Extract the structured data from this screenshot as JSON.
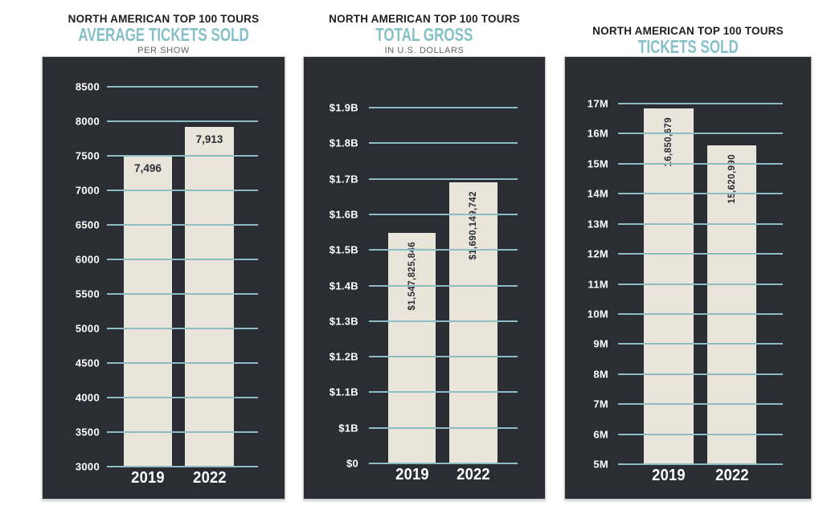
{
  "theme": {
    "page_bg": "#ffffff",
    "panel_bg": "#2b2d34",
    "bar_fill": "#e9e5db",
    "grid_color": "#8dbdc2",
    "tick_text": "#ffffff",
    "value_text": "#2b2d34",
    "accent_teal": "#86c1c9",
    "title_black": "#1e1e20",
    "note_gray": "#636363"
  },
  "chart_data": [
    {
      "type": "bar",
      "title": "NORTH AMERICAN TOP 100 TOURS",
      "subtitle": "AVERAGE TICKETS SOLD",
      "note": "PER SHOW",
      "categories": [
        "2019",
        "2022"
      ],
      "values": [
        7496,
        7913
      ],
      "value_labels": [
        "7,496",
        "7,913"
      ],
      "value_label_orientation": "horizontal",
      "tick_labels": [
        "8500",
        "8000",
        "7500",
        "7000",
        "6500",
        "6000",
        "5500",
        "5000",
        "4500",
        "4000",
        "3500",
        "3000"
      ],
      "tick_values": [
        8500,
        8000,
        7500,
        7000,
        6500,
        6000,
        5500,
        5000,
        4500,
        4000,
        3500,
        3000
      ],
      "axis_map": [
        [
          3000,
          0
        ],
        [
          8500,
          1
        ]
      ],
      "ylim": [
        3000,
        8500
      ],
      "grid": true,
      "legend": "none"
    },
    {
      "type": "bar",
      "title": "NORTH AMERICAN TOP 100 TOURS",
      "subtitle": "TOTAL GROSS",
      "note": "IN U.S. DOLLARS",
      "categories": [
        "2019",
        "2022"
      ],
      "values": [
        1547825846,
        1690149742
      ],
      "value_labels": [
        "$1,547,825,846",
        "$1,690,149,742"
      ],
      "value_label_orientation": "vertical",
      "tick_labels": [
        "$1.9B",
        "$1.8B",
        "$1.7B",
        "$1.6B",
        "$1.5B",
        "$1.4B",
        "$1.3B",
        "$1.2B",
        "$1.1B",
        "$1B",
        "$0"
      ],
      "tick_values": [
        1900000000,
        1800000000,
        1700000000,
        1600000000,
        1500000000,
        1400000000,
        1300000000,
        1200000000,
        1100000000,
        1000000000,
        0
      ],
      "axis_map": [
        [
          0,
          0
        ],
        [
          1000000000,
          0.1
        ],
        [
          1900000000,
          1
        ]
      ],
      "ylim": [
        0,
        1900000000
      ],
      "axis_note": "broken axis: $0 to $1B compressed to one tick interval",
      "grid": true,
      "legend": "none"
    },
    {
      "type": "bar",
      "title": "NORTH AMERICAN TOP 100 TOURS",
      "subtitle": "TICKETS SOLD",
      "note": "",
      "categories": [
        "2019",
        "2022"
      ],
      "values": [
        16850679,
        15620990
      ],
      "value_labels": [
        "16,850,679",
        "15,620,990"
      ],
      "value_label_orientation": "vertical",
      "tick_labels": [
        "17M",
        "16M",
        "15M",
        "14M",
        "13M",
        "12M",
        "11M",
        "10M",
        "9M",
        "8M",
        "7M",
        "6M",
        "5M"
      ],
      "tick_values": [
        17000000,
        16000000,
        15000000,
        14000000,
        13000000,
        12000000,
        11000000,
        10000000,
        9000000,
        8000000,
        7000000,
        6000000,
        5000000
      ],
      "axis_map": [
        [
          5000000,
          0
        ],
        [
          17000000,
          1
        ]
      ],
      "ylim": [
        5000000,
        17000000
      ],
      "grid": true,
      "legend": "none"
    }
  ]
}
